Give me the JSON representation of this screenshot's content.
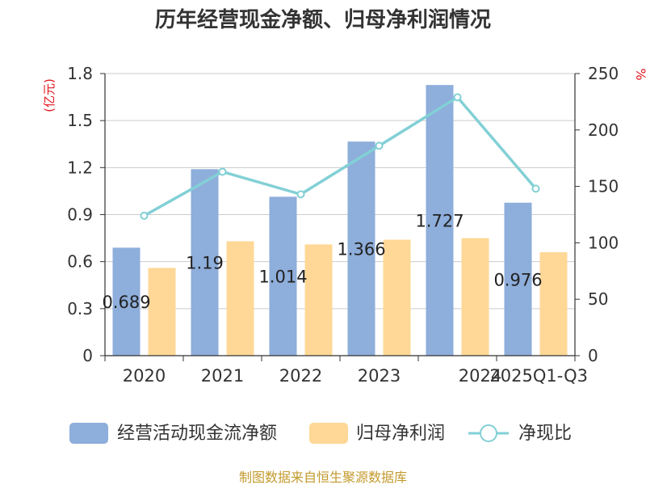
{
  "chart_data": {
    "type": "bar",
    "title": "历年经营现金净额、归母净利润情况",
    "categories": [
      "2020",
      "2021",
      "2022",
      "2023",
      "2024",
      "2025Q1-Q3"
    ],
    "series": [
      {
        "name": "经营活动现金流净额",
        "kind": "bar",
        "axis": "left",
        "color": "#8eaedb",
        "values": [
          0.689,
          1.19,
          1.014,
          1.366,
          1.727,
          0.976
        ],
        "labels": [
          "0.689",
          "1.19",
          "1.014",
          "1.366",
          "1.727",
          "0.976"
        ]
      },
      {
        "name": "归母净利润",
        "kind": "bar",
        "axis": "left",
        "color": "#ffd897",
        "values": [
          0.56,
          0.73,
          0.71,
          0.74,
          0.75,
          0.66
        ]
      },
      {
        "name": "净现比",
        "kind": "line",
        "axis": "right",
        "color": "#82d0d6",
        "values": [
          124,
          163,
          143,
          186,
          229,
          148
        ]
      }
    ],
    "y_left": {
      "unit": "(亿元)",
      "min": 0,
      "max": 1.8,
      "ticks": [
        "0",
        "0.3",
        "0.6",
        "0.9",
        "1.2",
        "1.5",
        "1.8"
      ]
    },
    "y_right": {
      "unit": "%",
      "min": 0,
      "max": 250,
      "ticks": [
        "0",
        "50",
        "100",
        "150",
        "200",
        "250"
      ]
    },
    "grid": true,
    "legend_position": "bottom"
  },
  "source": "制图数据来自恒生聚源数据库"
}
